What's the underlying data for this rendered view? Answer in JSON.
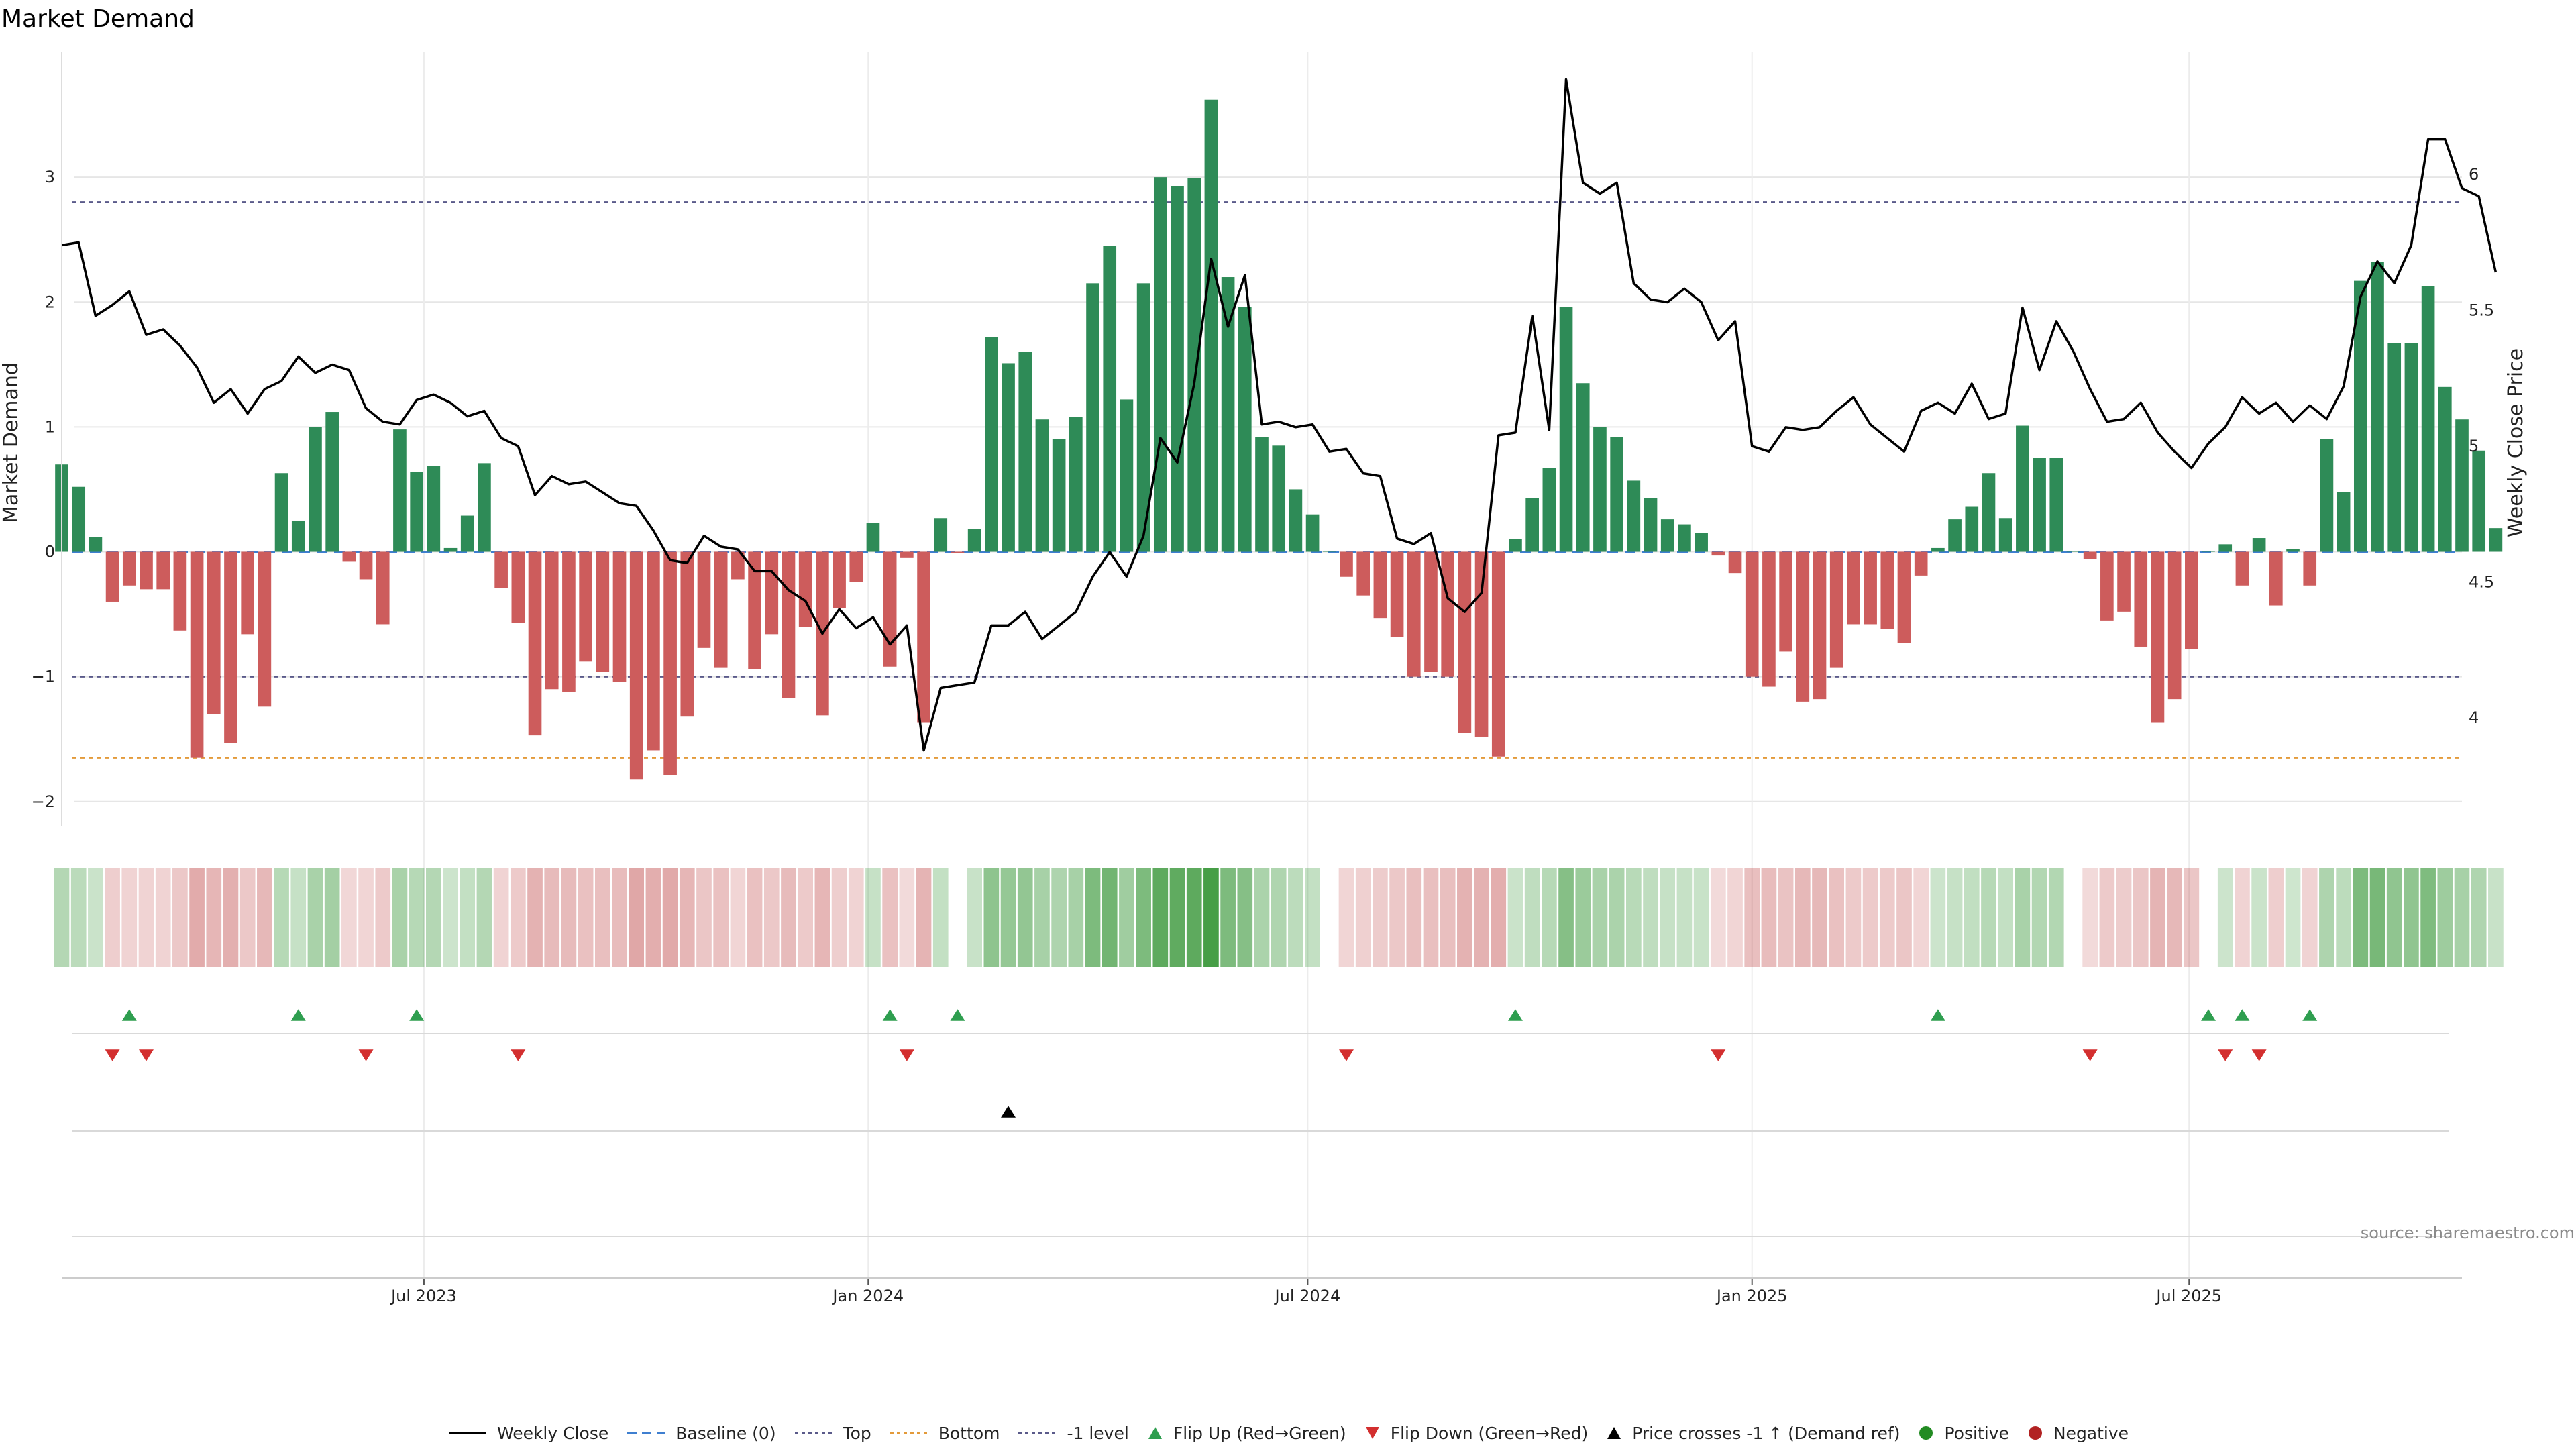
{
  "title": "Market Demand",
  "source": "source: sharemaestro.com",
  "colors": {
    "positive_bar": "#2e8b57",
    "negative_bar": "#cd5c5c",
    "price_line": "#000000",
    "baseline": "#3f7fd0",
    "top": "#5a5a8a",
    "bottom": "#e39a3a",
    "level_minus1": "#5a5a8a",
    "flip_up": "#2e9e4f",
    "flip_down": "#d32f2f",
    "price_cross": "#000000",
    "positive_dot": "#228b22",
    "negative_dot": "#b22222"
  },
  "legend": [
    {
      "label": "Weekly Close",
      "kind": "line",
      "color": "#000000"
    },
    {
      "label": "Baseline (0)",
      "kind": "dash",
      "color": "#3f7fd0"
    },
    {
      "label": "Top",
      "kind": "dot",
      "color": "#5a5a8a"
    },
    {
      "label": "Bottom",
      "kind": "dot",
      "color": "#e39a3a"
    },
    {
      "label": "-1 level",
      "kind": "dot",
      "color": "#5a5a8a"
    },
    {
      "label": "Flip Up (Red→Green)",
      "kind": "tri-up",
      "color": "#2e9e4f"
    },
    {
      "label": "Flip Down (Green→Red)",
      "kind": "tri-down",
      "color": "#d32f2f"
    },
    {
      "label": "Price crosses -1 ↑ (Demand ref)",
      "kind": "tri-up",
      "color": "#000000"
    },
    {
      "label": "Positive",
      "kind": "circle",
      "color": "#228b22"
    },
    {
      "label": "Negative",
      "kind": "circle",
      "color": "#b22222"
    }
  ],
  "chart_data": {
    "type": "bar",
    "title": "Market Demand",
    "ylabel": "Market Demand",
    "y2label": "Weekly Close Price",
    "ylim": [
      -2.2,
      4.0
    ],
    "y2lim": [
      3.6,
      6.45
    ],
    "yticks": [
      -2,
      -1,
      0,
      1,
      2,
      3
    ],
    "y2ticks": [
      4,
      4.5,
      5,
      5.5,
      6
    ],
    "ytick_labels": [
      "−2",
      "−1",
      "0",
      "1",
      "2",
      "3"
    ],
    "y2tick_labels": [
      "4",
      "4.5",
      "5",
      "5.5",
      "6"
    ],
    "x_start": "2023-02-01",
    "x_end": "2025-10-22",
    "x_ticks": [
      {
        "date": "2023-07-01",
        "label": "Jul 2023"
      },
      {
        "date": "2024-01-01",
        "label": "Jan 2024"
      },
      {
        "date": "2024-07-01",
        "label": "Jul 2024"
      },
      {
        "date": "2025-01-01",
        "label": "Jan 2025"
      },
      {
        "date": "2025-07-01",
        "label": "Jul 2025"
      }
    ],
    "reference_lines": {
      "baseline": 0,
      "top": 2.8,
      "bottom": -1.65,
      "minus1_level": -1
    },
    "weeks_start": "2023-02-01",
    "weeks": [
      {
        "demand": 0.7,
        "close": 5.74
      },
      {
        "demand": 0.52,
        "close": 5.75
      },
      {
        "demand": 0.12,
        "close": 5.48
      },
      {
        "demand": -0.4,
        "close": 5.52
      },
      {
        "demand": -0.27,
        "close": 5.57
      },
      {
        "demand": -0.3,
        "close": 5.41
      },
      {
        "demand": -0.3,
        "close": 5.43
      },
      {
        "demand": -0.63,
        "close": 5.37
      },
      {
        "demand": -1.65,
        "close": 5.29
      },
      {
        "demand": -1.3,
        "close": 5.16
      },
      {
        "demand": -1.53,
        "close": 5.21
      },
      {
        "demand": -0.66,
        "close": 5.12
      },
      {
        "demand": -1.24,
        "close": 5.21
      },
      {
        "demand": 0.63,
        "close": 5.24
      },
      {
        "demand": 0.25,
        "close": 5.33
      },
      {
        "demand": 1.0,
        "close": 5.27
      },
      {
        "demand": 1.12,
        "close": 5.3
      },
      {
        "demand": -0.08,
        "close": 5.28
      },
      {
        "demand": -0.22,
        "close": 5.14
      },
      {
        "demand": -0.58,
        "close": 5.09
      },
      {
        "demand": 0.98,
        "close": 5.08
      },
      {
        "demand": 0.64,
        "close": 5.17
      },
      {
        "demand": 0.69,
        "close": 5.19
      },
      {
        "demand": 0.03,
        "close": 5.16
      },
      {
        "demand": 0.29,
        "close": 5.11
      },
      {
        "demand": 0.71,
        "close": 5.13
      },
      {
        "demand": -0.29,
        "close": 5.03
      },
      {
        "demand": -0.57,
        "close": 5.0
      },
      {
        "demand": -1.47,
        "close": 4.82
      },
      {
        "demand": -1.1,
        "close": 4.89
      },
      {
        "demand": -1.12,
        "close": 4.86
      },
      {
        "demand": -0.88,
        "close": 4.87
      },
      {
        "demand": -0.96,
        "close": 4.83
      },
      {
        "demand": -1.04,
        "close": 4.79
      },
      {
        "demand": -1.82,
        "close": 4.78
      },
      {
        "demand": -1.59,
        "close": 4.69
      },
      {
        "demand": -1.79,
        "close": 4.58
      },
      {
        "demand": -1.32,
        "close": 4.57
      },
      {
        "demand": -0.77,
        "close": 4.67
      },
      {
        "demand": -0.93,
        "close": 4.63
      },
      {
        "demand": -0.22,
        "close": 4.62
      },
      {
        "demand": -0.94,
        "close": 4.54
      },
      {
        "demand": -0.66,
        "close": 4.54
      },
      {
        "demand": -1.17,
        "close": 4.47
      },
      {
        "demand": -0.6,
        "close": 4.43
      },
      {
        "demand": -1.31,
        "close": 4.31
      },
      {
        "demand": -0.45,
        "close": 4.4
      },
      {
        "demand": -0.24,
        "close": 4.33
      },
      {
        "demand": 0.23,
        "close": 4.37
      },
      {
        "demand": -0.92,
        "close": 4.27
      },
      {
        "demand": -0.05,
        "close": 4.34
      },
      {
        "demand": -1.37,
        "close": 3.88
      },
      {
        "demand": 0.27,
        "close": 4.11
      },
      {
        "demand": -0.01,
        "close": 4.12
      },
      {
        "demand": 0.18,
        "close": 4.13
      },
      {
        "demand": 1.72,
        "close": 4.34
      },
      {
        "demand": 1.51,
        "close": 4.34
      },
      {
        "demand": 1.6,
        "close": 4.39
      },
      {
        "demand": 1.06,
        "close": 4.29
      },
      {
        "demand": 0.9,
        "close": 4.34
      },
      {
        "demand": 1.08,
        "close": 4.39
      },
      {
        "demand": 2.15,
        "close": 4.52
      },
      {
        "demand": 2.45,
        "close": 4.61
      },
      {
        "demand": 1.22,
        "close": 4.52
      },
      {
        "demand": 2.15,
        "close": 4.67
      },
      {
        "demand": 3.0,
        "close": 5.03
      },
      {
        "demand": 2.93,
        "close": 4.94
      },
      {
        "demand": 2.99,
        "close": 5.23
      },
      {
        "demand": 3.62,
        "close": 5.69
      },
      {
        "demand": 2.2,
        "close": 5.44
      },
      {
        "demand": 1.96,
        "close": 5.63
      },
      {
        "demand": 0.92,
        "close": 5.08
      },
      {
        "demand": 0.85,
        "close": 5.09
      },
      {
        "demand": 0.5,
        "close": 5.07
      },
      {
        "demand": 0.3,
        "close": 5.08
      },
      {
        "demand": 0.0,
        "close": 4.98
      },
      {
        "demand": -0.2,
        "close": 4.99
      },
      {
        "demand": -0.35,
        "close": 4.9
      },
      {
        "demand": -0.53,
        "close": 4.89
      },
      {
        "demand": -0.68,
        "close": 4.66
      },
      {
        "demand": -1.0,
        "close": 4.64
      },
      {
        "demand": -0.96,
        "close": 4.68
      },
      {
        "demand": -1.0,
        "close": 4.44
      },
      {
        "demand": -1.45,
        "close": 4.39
      },
      {
        "demand": -1.48,
        "close": 4.46
      },
      {
        "demand": -1.64,
        "close": 5.04
      },
      {
        "demand": 0.1,
        "close": 5.05
      },
      {
        "demand": 0.43,
        "close": 5.48
      },
      {
        "demand": 0.67,
        "close": 5.06
      },
      {
        "demand": 1.96,
        "close": 6.35
      },
      {
        "demand": 1.35,
        "close": 5.97
      },
      {
        "demand": 1.0,
        "close": 5.93
      },
      {
        "demand": 0.92,
        "close": 5.97
      },
      {
        "demand": 0.57,
        "close": 5.6
      },
      {
        "demand": 0.43,
        "close": 5.54
      },
      {
        "demand": 0.26,
        "close": 5.53
      },
      {
        "demand": 0.22,
        "close": 5.58
      },
      {
        "demand": 0.15,
        "close": 5.53
      },
      {
        "demand": -0.03,
        "close": 5.39
      },
      {
        "demand": -0.17,
        "close": 5.46
      },
      {
        "demand": -1.0,
        "close": 5.0
      },
      {
        "demand": -1.08,
        "close": 4.98
      },
      {
        "demand": -0.8,
        "close": 5.07
      },
      {
        "demand": -1.2,
        "close": 5.06
      },
      {
        "demand": -1.18,
        "close": 5.07
      },
      {
        "demand": -0.93,
        "close": 5.13
      },
      {
        "demand": -0.58,
        "close": 5.18
      },
      {
        "demand": -0.58,
        "close": 5.08
      },
      {
        "demand": -0.62,
        "close": 5.03
      },
      {
        "demand": -0.73,
        "close": 4.98
      },
      {
        "demand": -0.19,
        "close": 5.13
      },
      {
        "demand": 0.03,
        "close": 5.16
      },
      {
        "demand": 0.26,
        "close": 5.12
      },
      {
        "demand": 0.36,
        "close": 5.23
      },
      {
        "demand": 0.63,
        "close": 5.1
      },
      {
        "demand": 0.27,
        "close": 5.12
      },
      {
        "demand": 1.01,
        "close": 5.51
      },
      {
        "demand": 0.75,
        "close": 5.28
      },
      {
        "demand": 0.75,
        "close": 5.46
      },
      {
        "demand": 0.0,
        "close": 5.35
      },
      {
        "demand": -0.06,
        "close": 5.21
      },
      {
        "demand": -0.55,
        "close": 5.09
      },
      {
        "demand": -0.48,
        "close": 5.1
      },
      {
        "demand": -0.76,
        "close": 5.16
      },
      {
        "demand": -1.37,
        "close": 5.05
      },
      {
        "demand": -1.18,
        "close": 4.98
      },
      {
        "demand": -0.78,
        "close": 4.92
      },
      {
        "demand": 0.0,
        "close": 5.01
      },
      {
        "demand": 0.06,
        "close": 5.07
      },
      {
        "demand": -0.27,
        "close": 5.18
      },
      {
        "demand": 0.11,
        "close": 5.12
      },
      {
        "demand": -0.43,
        "close": 5.16
      },
      {
        "demand": 0.02,
        "close": 5.09
      },
      {
        "demand": -0.27,
        "close": 5.15
      },
      {
        "demand": 0.9,
        "close": 5.1
      },
      {
        "demand": 0.48,
        "close": 5.22
      },
      {
        "demand": 2.17,
        "close": 5.55
      },
      {
        "demand": 2.32,
        "close": 5.68
      },
      {
        "demand": 1.67,
        "close": 5.6
      },
      {
        "demand": 1.67,
        "close": 5.74
      },
      {
        "demand": 2.13,
        "close": 6.13
      },
      {
        "demand": 1.32,
        "close": 6.13
      },
      {
        "demand": 1.06,
        "close": 5.95
      },
      {
        "demand": 0.81,
        "close": 5.92
      },
      {
        "demand": 0.19,
        "close": 5.64
      }
    ],
    "flip_up_weeks": [
      4,
      14,
      21,
      49,
      53,
      86,
      111,
      127,
      129,
      133
    ],
    "flip_down_weeks": [
      3,
      5,
      18,
      27,
      50,
      76,
      98,
      120,
      128,
      130
    ],
    "price_cross_weeks": [
      56
    ]
  }
}
